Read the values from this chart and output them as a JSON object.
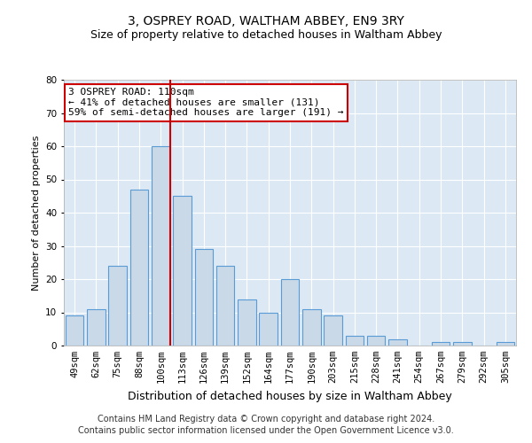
{
  "title": "3, OSPREY ROAD, WALTHAM ABBEY, EN9 3RY",
  "subtitle": "Size of property relative to detached houses in Waltham Abbey",
  "xlabel": "Distribution of detached houses by size in Waltham Abbey",
  "ylabel": "Number of detached properties",
  "categories": [
    "49sqm",
    "62sqm",
    "75sqm",
    "88sqm",
    "100sqm",
    "113sqm",
    "126sqm",
    "139sqm",
    "152sqm",
    "164sqm",
    "177sqm",
    "190sqm",
    "203sqm",
    "215sqm",
    "228sqm",
    "241sqm",
    "254sqm",
    "267sqm",
    "279sqm",
    "292sqm",
    "305sqm"
  ],
  "values": [
    9,
    11,
    24,
    47,
    60,
    45,
    29,
    24,
    14,
    10,
    20,
    11,
    9,
    3,
    3,
    2,
    0,
    1,
    1,
    0,
    1
  ],
  "bar_color": "#c9d9e8",
  "bar_edge_color": "#5b9bd5",
  "marker_color": "#cc0000",
  "marker_index": 4,
  "annotation_text": "3 OSPREY ROAD: 110sqm\n← 41% of detached houses are smaller (131)\n59% of semi-detached houses are larger (191) →",
  "annotation_box_color": "#ffffff",
  "annotation_box_edge": "#cc0000",
  "ylim": [
    0,
    80
  ],
  "yticks": [
    0,
    10,
    20,
    30,
    40,
    50,
    60,
    70,
    80
  ],
  "background_color": "#dce9f5",
  "footer_line1": "Contains HM Land Registry data © Crown copyright and database right 2024.",
  "footer_line2": "Contains public sector information licensed under the Open Government Licence v3.0.",
  "title_fontsize": 10,
  "subtitle_fontsize": 9,
  "ylabel_fontsize": 8,
  "xlabel_fontsize": 9,
  "tick_fontsize": 7.5,
  "annotation_fontsize": 8,
  "footer_fontsize": 7
}
